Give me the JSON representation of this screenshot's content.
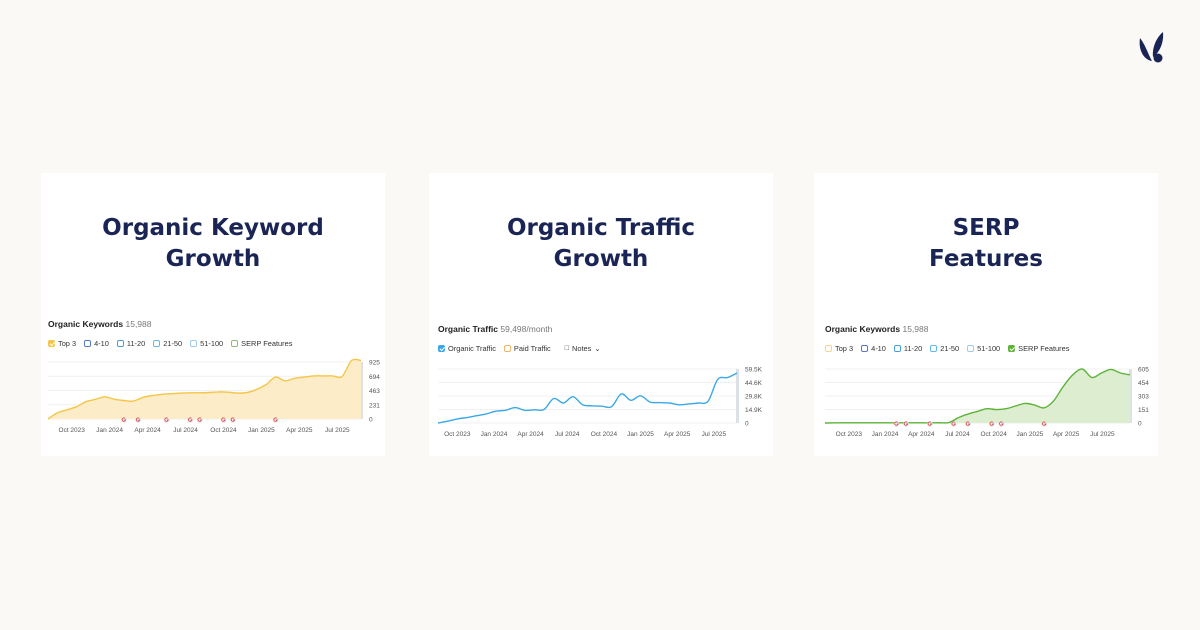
{
  "brand": {
    "logo_icon": "leaf-logo-icon",
    "color": "#1a2555"
  },
  "cards": [
    {
      "title_lines": [
        "Organic Keyword",
        "Growth"
      ],
      "widget_title": "Organic Keywords",
      "widget_count": "15,988",
      "legend": [
        {
          "label": "Top 3",
          "checked": true,
          "color": "#f6c547"
        },
        {
          "label": "4-10",
          "checked": false,
          "color": "#5578c8"
        },
        {
          "label": "11-20",
          "checked": false,
          "color": "#4a9fd6"
        },
        {
          "label": "21-50",
          "checked": false,
          "color": "#64b9e8"
        },
        {
          "label": "51-100",
          "checked": false,
          "color": "#9ccbef"
        },
        {
          "label": "SERP Features",
          "checked": false,
          "color": "#8bc070"
        }
      ]
    },
    {
      "title_lines": [
        "Organic Traffic",
        "Growth"
      ],
      "widget_title": "Organic Traffic",
      "widget_count": "59,498/month",
      "legend": [
        {
          "label": "Organic Traffic",
          "checked": true,
          "color": "#3aa8e8"
        },
        {
          "label": "Paid Traffic",
          "checked": false,
          "color": "#f0b46a"
        }
      ],
      "notes_label": "Notes"
    },
    {
      "title_lines": [
        "SERP",
        "Features"
      ],
      "widget_title": "Organic Keywords",
      "widget_count": "15,988",
      "legend": [
        {
          "label": "Top 3",
          "checked": false,
          "color": "#f6d68a"
        },
        {
          "label": "4-10",
          "checked": false,
          "color": "#5578c8"
        },
        {
          "label": "11-20",
          "checked": false,
          "color": "#4a9fd6"
        },
        {
          "label": "21-50",
          "checked": false,
          "color": "#64b9e8"
        },
        {
          "label": "51-100",
          "checked": false,
          "color": "#9ccbef"
        },
        {
          "label": "SERP Features",
          "checked": true,
          "color": "#5cb338"
        }
      ]
    }
  ],
  "chart_data": [
    {
      "type": "area",
      "series": [
        {
          "name": "Top 3",
          "color": "#f6c547",
          "fill": "#fcedc8",
          "values": [
            0,
            100,
            150,
            200,
            280,
            320,
            360,
            320,
            300,
            290,
            350,
            380,
            400,
            410,
            420,
            425,
            425,
            430,
            440,
            435,
            420,
            430,
            480,
            560,
            680,
            620,
            660,
            680,
            700,
            700,
            700,
            690,
            950,
            950
          ]
        }
      ],
      "xlim": [
        0,
        33
      ],
      "ylim": [
        0,
        925
      ],
      "y_ticks": [
        "925",
        "694",
        "463",
        "231",
        "0"
      ],
      "x_ticks": [
        "Oct 2023",
        "Jan 2024",
        "Apr 2024",
        "Jul 2024",
        "Oct 2024",
        "Jan 2025",
        "Apr 2025",
        "Jul 2025"
      ],
      "x_tick_positions": [
        2.5,
        6.5,
        10.5,
        14.5,
        18.5,
        22.5,
        26.5,
        30.5
      ],
      "google_markers": [
        8,
        9.5,
        12.5,
        15,
        16,
        18.5,
        19.5,
        24
      ],
      "grid": true,
      "legend": "top-left"
    },
    {
      "type": "line",
      "series": [
        {
          "name": "Organic Traffic",
          "color": "#3aa8e8",
          "values": [
            0,
            2000,
            4500,
            6000,
            8000,
            10000,
            13000,
            14000,
            17000,
            14000,
            14500,
            15000,
            27000,
            22000,
            29000,
            20000,
            19000,
            18500,
            18000,
            32000,
            25000,
            30000,
            23000,
            22500,
            22000,
            20000,
            21000,
            22000,
            24000,
            48000,
            50000,
            55000
          ]
        }
      ],
      "xlim": [
        0,
        31
      ],
      "ylim": [
        0,
        59500
      ],
      "y_ticks": [
        "59.5K",
        "44.6K",
        "29.8K",
        "14.9K",
        "0"
      ],
      "x_ticks": [
        "Oct 2023",
        "Jan 2024",
        "Apr 2024",
        "Jul 2024",
        "Oct 2024",
        "Jan 2025",
        "Apr 2025",
        "Jul 2025"
      ],
      "x_tick_positions": [
        2,
        5.8,
        9.6,
        13.4,
        17.2,
        21,
        24.8,
        28.6
      ],
      "grid": true,
      "legend": "top-left"
    },
    {
      "type": "area",
      "series": [
        {
          "name": "SERP Features",
          "color": "#5cb338",
          "fill": "#dceecf",
          "values": [
            0,
            2,
            2,
            2,
            2,
            2,
            2,
            2,
            2,
            2,
            2,
            2,
            3,
            5,
            60,
            100,
            130,
            160,
            150,
            160,
            190,
            220,
            200,
            170,
            250,
            410,
            540,
            605,
            510,
            560,
            600,
            560,
            540
          ]
        }
      ],
      "xlim": [
        0,
        32
      ],
      "ylim": [
        0,
        605
      ],
      "y_ticks": [
        "605",
        "454",
        "303",
        "151",
        "0"
      ],
      "x_ticks": [
        "Oct 2023",
        "Jan 2024",
        "Apr 2024",
        "Jul 2024",
        "Oct 2024",
        "Jan 2025",
        "Apr 2025",
        "Jul 2025"
      ],
      "x_tick_positions": [
        2.5,
        6.3,
        10.1,
        13.9,
        17.7,
        21.5,
        25.3,
        29.1
      ],
      "google_markers": [
        7.5,
        8.5,
        11,
        13.5,
        15,
        17.5,
        18.5,
        23
      ],
      "grid": true,
      "legend": "top-left"
    }
  ]
}
